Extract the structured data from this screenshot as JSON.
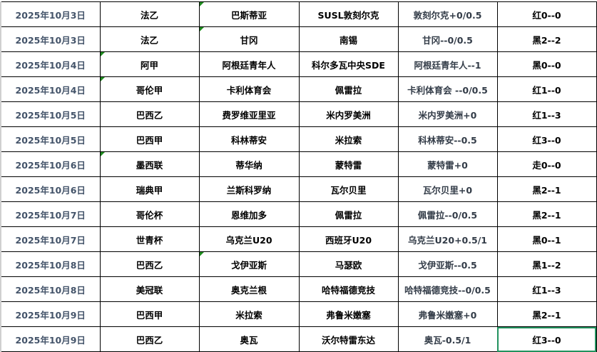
{
  "columns": [
    "date",
    "league",
    "home",
    "away",
    "handicap",
    "result"
  ],
  "rows": [
    {
      "date": "2025年10月3日",
      "league": "法乙",
      "home": "巴斯蒂亚",
      "away": "SUSL敦刻尔克",
      "handicap": "敦刻尔克+0/0.5",
      "result": "红0--0"
    },
    {
      "date": "2025年10月3日",
      "league": "法乙",
      "home": "甘冈",
      "away": "南锡",
      "handicap": "甘冈--0/0.5",
      "result": "黑2--2"
    },
    {
      "date": "2025年10月4日",
      "league": "阿甲",
      "home": "阿根廷青年人",
      "away": "科尔多瓦中央SDE",
      "handicap": "阿根廷青年人--1",
      "result": "黑0--0"
    },
    {
      "date": "2025年10月4日",
      "league": "哥伦甲",
      "home": "卡利体育会",
      "away": "佩雷拉",
      "handicap": "卡利体育会 --0/0.5",
      "result": "红1--0"
    },
    {
      "date": "2025年10月5日",
      "league": "巴西乙",
      "home": "费罗维亚里亚",
      "away": "米内罗美洲",
      "handicap": "米内罗美洲+0",
      "result": "红1--3"
    },
    {
      "date": "2025年10月5日",
      "league": "巴西甲",
      "home": "科林蒂安",
      "away": "米拉索",
      "handicap": "科林蒂安--0.5",
      "result": "红3--0"
    },
    {
      "date": "2025年10月6日",
      "league": "墨西联",
      "home": "蒂华纳",
      "away": "蒙特雷",
      "handicap": "蒙特雷+0",
      "result": "走0--0"
    },
    {
      "date": "2025年10月6日",
      "league": "瑞典甲",
      "home": "兰斯科罗纳",
      "away": "瓦尔贝里",
      "handicap": "瓦尔贝里+0",
      "result": "黑2--1"
    },
    {
      "date": "2025年10月7日",
      "league": "哥伦杯",
      "home": "恩维加多",
      "away": "佩雷拉",
      "handicap": "佩雷拉--0/0.5",
      "result": "黑2--1"
    },
    {
      "date": "2025年10月7日",
      "league": "世青杯",
      "home": "乌克兰U20",
      "away": "西班牙U20",
      "handicap": "乌克兰U20+0.5/1",
      "result": "黑0--1"
    },
    {
      "date": "2025年10月8日",
      "league": "巴西乙",
      "home": "戈伊亚斯",
      "away": "马瑟欧",
      "handicap": "戈伊亚斯--0.5",
      "result": "黑1--2"
    },
    {
      "date": "2025年10月8日",
      "league": "美冠联",
      "home": "奥克兰根",
      "away": "哈特福德竞技",
      "handicap": "哈特福德竞技--0/0.5",
      "result": "红1--3"
    },
    {
      "date": "2025年10月9日",
      "league": "巴西甲",
      "home": "米拉索",
      "away": "弗鲁米嫩塞",
      "handicap": "弗鲁米嫩塞+0",
      "result": "黑2--1"
    },
    {
      "date": "2025年10月9日",
      "league": "巴西乙",
      "home": "奥瓦",
      "away": "沃尔特雷东达",
      "handicap": "奥瓦-0.5/1",
      "result": "红3--0"
    }
  ],
  "comment_marks": [
    [
      0,
      "home"
    ],
    [
      1,
      "home"
    ],
    [
      2,
      "league"
    ],
    [
      3,
      "league"
    ],
    [
      6,
      "league"
    ],
    [
      10,
      "home"
    ]
  ],
  "selected_cell": [
    13,
    "result"
  ],
  "colors": {
    "date_text": "#44546a",
    "comment_indicator": "#1f8b1f",
    "selection": "#21925e"
  }
}
